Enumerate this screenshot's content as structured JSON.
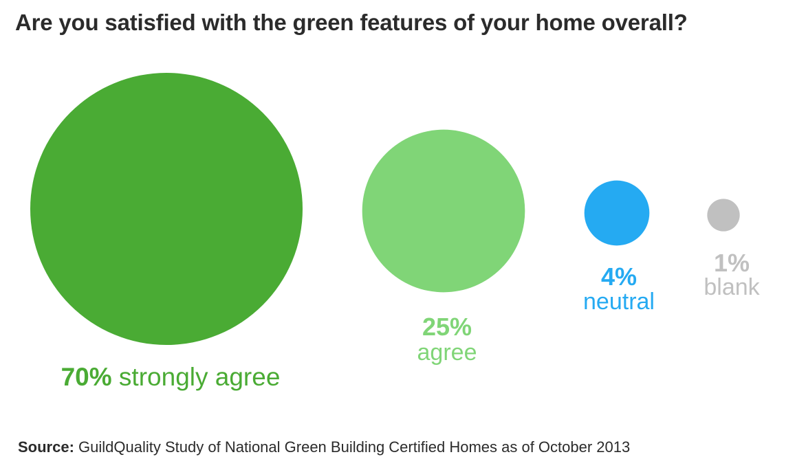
{
  "chart_data": {
    "type": "bubble",
    "title": "Are you satisfied with the green features of your home overall?",
    "unit": "%",
    "categories": [
      "strongly agree",
      "agree",
      "neutral",
      "blank"
    ],
    "values": [
      70,
      25,
      4,
      1
    ],
    "value_labels": [
      "70%",
      "25%",
      "4%",
      "1%"
    ],
    "colors": [
      "#4aab34",
      "#80d577",
      "#25aaf2",
      "#c0c0c0"
    ],
    "label_colors": [
      "#4aab34",
      "#80d577",
      "#25aaf2",
      "#c0c0c0"
    ],
    "legend": "none",
    "grid": false
  },
  "source": {
    "label": "Source:",
    "text": "GuildQuality Study of National Green Building Certified Homes as of October 2013"
  }
}
